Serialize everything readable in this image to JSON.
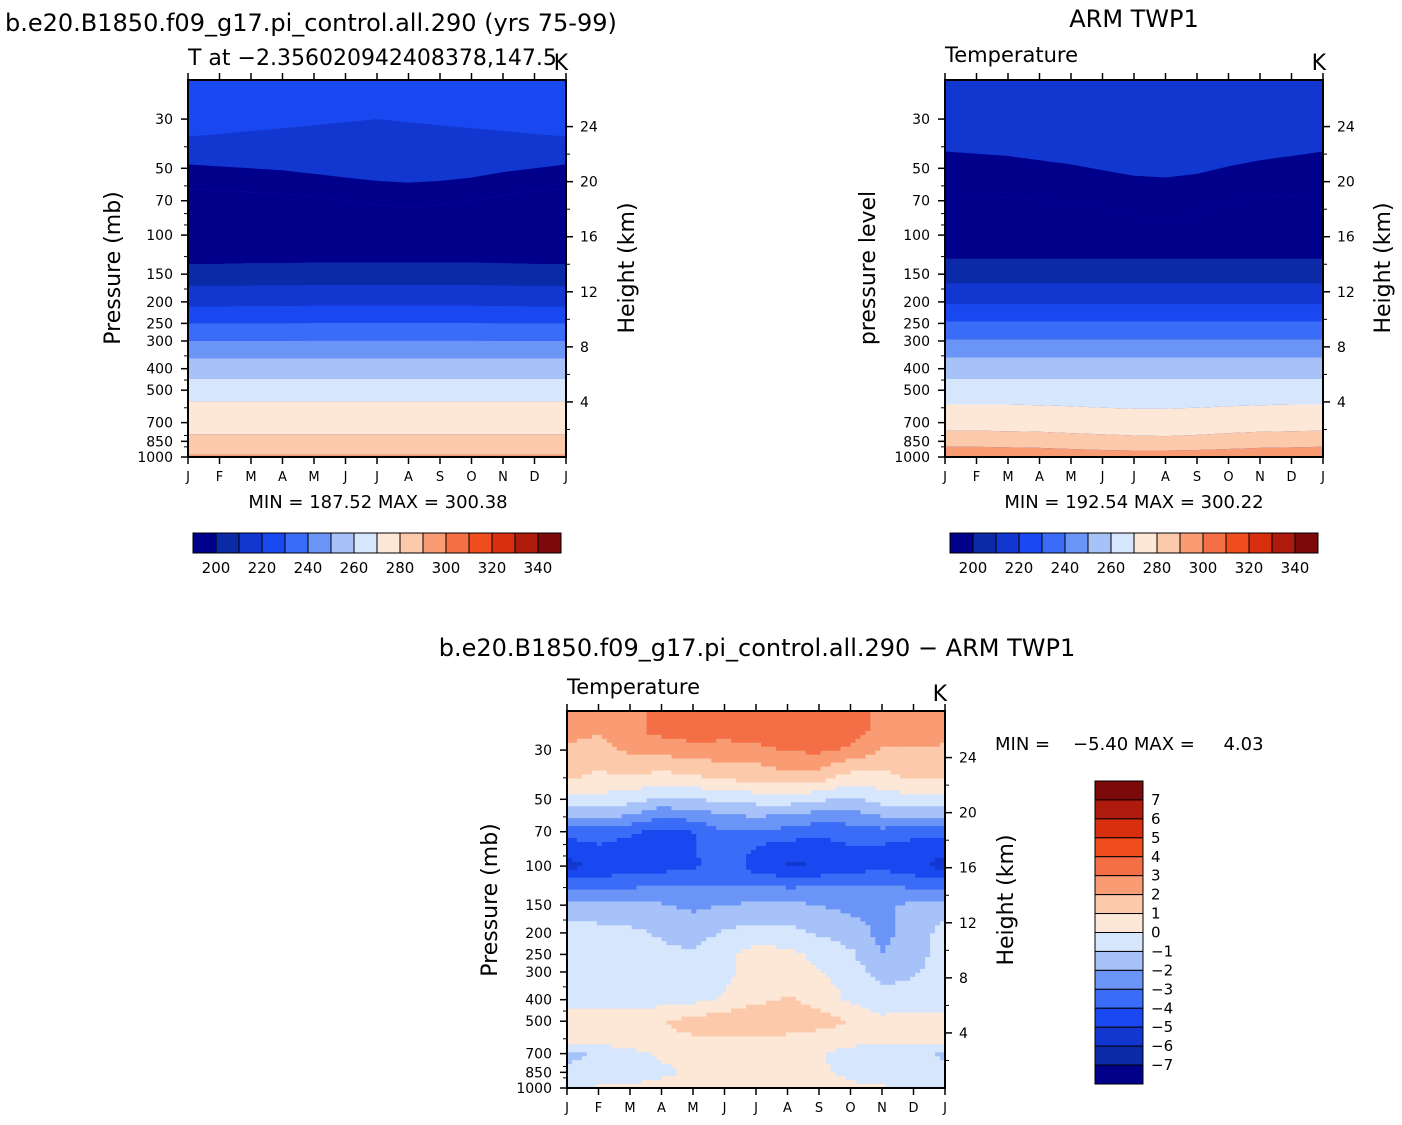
{
  "chart_data": [
    {
      "type": "heatmap",
      "title": "b.e20.B1850.f09_g17.pi_control.all.290 (yrs 75-99)",
      "subtitle": "T at -2.356020942408378,147.5",
      "units": "K",
      "ylabel": "Pressure (mb)",
      "ylabel_right": "Height (km)",
      "x_ticks": [
        "J",
        "F",
        "M",
        "A",
        "M",
        "J",
        "J",
        "A",
        "S",
        "O",
        "N",
        "D",
        "J"
      ],
      "y_ticks": [
        "30",
        "50",
        "70",
        "100",
        "150",
        "200",
        "250",
        "300",
        "400",
        "500",
        "700",
        "850",
        "1000"
      ],
      "y_ticks_right": [
        "24",
        "20",
        "16",
        "12",
        "8",
        "4"
      ],
      "ylim_mb": [
        1000,
        20
      ],
      "stats": "MIN = 187.52 MAX = 300.38",
      "min": 187.52,
      "max": 300.38,
      "colorbar_ticks": [
        "200",
        "220",
        "240",
        "260",
        "280",
        "300",
        "320",
        "340"
      ],
      "colorbar_levels": [
        190,
        200,
        210,
        220,
        230,
        240,
        250,
        260,
        270,
        280,
        290,
        300,
        310,
        320,
        330,
        340,
        350
      ],
      "level_boundaries_mb": [
        {
          "value": 230,
          "p_mb": [
            36,
            35,
            34,
            33,
            32,
            31,
            30,
            31,
            32,
            33,
            34,
            35,
            36
          ]
        },
        {
          "value": 220,
          "p_mb": [
            48,
            49,
            50,
            51,
            53,
            55,
            57,
            58,
            57,
            55,
            52,
            50,
            48
          ]
        },
        {
          "value": 200,
          "p_mb": [
            62,
            63,
            64,
            65,
            67,
            70,
            73,
            75,
            73,
            70,
            66,
            63,
            62
          ]
        },
        {
          "value": 190,
          "p_mb": [
            135,
            135,
            134,
            134,
            133,
            133,
            133,
            133,
            133,
            133,
            134,
            135,
            135
          ]
        },
        {
          "value": 210,
          "p_mb": [
            170,
            170,
            169,
            169,
            168,
            168,
            168,
            168,
            168,
            168,
            169,
            170,
            170
          ]
        },
        {
          "value": 220,
          "p_mb": [
            210,
            210,
            209,
            209,
            208,
            208,
            208,
            208,
            208,
            208,
            209,
            210,
            210
          ]
        },
        {
          "value": 230,
          "p_mb": [
            250,
            250,
            250,
            250,
            249,
            249,
            249,
            249,
            249,
            249,
            250,
            250,
            250
          ]
        },
        {
          "value": 240,
          "p_mb": [
            300,
            300,
            300,
            300,
            299,
            299,
            299,
            299,
            299,
            299,
            300,
            300,
            300
          ]
        },
        {
          "value": 250,
          "p_mb": [
            360,
            360,
            360,
            360,
            360,
            360,
            360,
            360,
            360,
            360,
            360,
            360,
            360
          ]
        },
        {
          "value": 260,
          "p_mb": [
            445,
            445,
            445,
            445,
            445,
            445,
            445,
            445,
            445,
            445,
            445,
            445,
            445
          ]
        },
        {
          "value": 270,
          "p_mb": [
            560,
            560,
            560,
            560,
            560,
            560,
            560,
            560,
            560,
            560,
            560,
            560,
            560
          ]
        },
        {
          "value": 280,
          "p_mb": [
            790,
            790,
            790,
            790,
            790,
            790,
            790,
            790,
            790,
            790,
            790,
            790,
            790
          ]
        },
        {
          "value": 290,
          "p_mb": [
            975,
            975,
            975,
            975,
            975,
            975,
            975,
            975,
            975,
            975,
            975,
            975,
            975
          ]
        }
      ]
    },
    {
      "type": "heatmap",
      "title": "ARM TWP1",
      "subtitle": "Temperature",
      "units": "K",
      "ylabel": "pressure level",
      "ylabel_right": "Height (km)",
      "x_ticks": [
        "J",
        "F",
        "M",
        "A",
        "M",
        "J",
        "J",
        "A",
        "S",
        "O",
        "N",
        "D",
        "J"
      ],
      "y_ticks": [
        "30",
        "50",
        "70",
        "100",
        "150",
        "200",
        "250",
        "300",
        "400",
        "500",
        "700",
        "850",
        "1000"
      ],
      "y_ticks_right": [
        "24",
        "20",
        "16",
        "12",
        "8",
        "4"
      ],
      "ylim_mb": [
        1000,
        20
      ],
      "stats": "MIN = 192.54 MAX = 300.22",
      "min": 192.54,
      "max": 300.22,
      "colorbar_ticks": [
        "200",
        "220",
        "240",
        "260",
        "280",
        "300",
        "320",
        "340"
      ],
      "colorbar_levels": [
        190,
        200,
        210,
        220,
        230,
        240,
        250,
        260,
        270,
        280,
        290,
        300,
        310,
        320,
        330,
        340,
        350
      ],
      "level_boundaries_mb": [
        {
          "value": 220,
          "p_mb": [
            42,
            43,
            44,
            46,
            48,
            51,
            54,
            55,
            53,
            49,
            46,
            44,
            42
          ]
        },
        {
          "value": 200,
          "p_mb": [
            66,
            67,
            68,
            69,
            71,
            75,
            82,
            86,
            80,
            70,
            67,
            66,
            66
          ]
        },
        {
          "value": 190,
          "p_mb": [
            128,
            128,
            128,
            128,
            128,
            128,
            128,
            128,
            128,
            128,
            128,
            128,
            128
          ]
        },
        {
          "value": 210,
          "p_mb": [
            165,
            165,
            165,
            165,
            165,
            165,
            165,
            165,
            165,
            165,
            165,
            165,
            165
          ]
        },
        {
          "value": 220,
          "p_mb": [
            205,
            205,
            205,
            205,
            205,
            205,
            205,
            205,
            205,
            205,
            205,
            205,
            205
          ]
        },
        {
          "value": 230,
          "p_mb": [
            245,
            245,
            245,
            245,
            245,
            245,
            245,
            245,
            245,
            245,
            245,
            245,
            245
          ]
        },
        {
          "value": 240,
          "p_mb": [
            295,
            295,
            295,
            295,
            295,
            295,
            295,
            295,
            295,
            295,
            295,
            295,
            295
          ]
        },
        {
          "value": 250,
          "p_mb": [
            355,
            355,
            355,
            355,
            355,
            355,
            355,
            355,
            355,
            355,
            355,
            355,
            355
          ]
        },
        {
          "value": 260,
          "p_mb": [
            445,
            445,
            445,
            445,
            445,
            445,
            445,
            445,
            445,
            445,
            445,
            445,
            445
          ]
        },
        {
          "value": 270,
          "p_mb": [
            580,
            580,
            580,
            585,
            590,
            600,
            605,
            605,
            600,
            590,
            585,
            580,
            580
          ]
        },
        {
          "value": 280,
          "p_mb": [
            760,
            760,
            765,
            770,
            780,
            790,
            800,
            805,
            795,
            780,
            770,
            765,
            760
          ]
        },
        {
          "value": 290,
          "p_mb": [
            900,
            900,
            905,
            910,
            920,
            930,
            935,
            935,
            930,
            920,
            910,
            905,
            900
          ]
        }
      ]
    },
    {
      "type": "heatmap",
      "title": "b.e20.B1850.f09_g17.pi_control.all.290 - ARM TWP1",
      "subtitle": "Temperature",
      "units": "K",
      "ylabel": "Pressure (mb)",
      "ylabel_right": "Height (km)",
      "x_ticks": [
        "J",
        "F",
        "M",
        "A",
        "M",
        "J",
        "J",
        "A",
        "S",
        "O",
        "N",
        "D",
        "J"
      ],
      "y_ticks": [
        "30",
        "50",
        "70",
        "100",
        "150",
        "200",
        "250",
        "300",
        "400",
        "500",
        "700",
        "850",
        "1000"
      ],
      "y_ticks_right": [
        "24",
        "20",
        "16",
        "12",
        "8",
        "4"
      ],
      "ylim_mb": [
        1000,
        20
      ],
      "stats": "MIN =    -5.40 MAX =     4.03",
      "min": -5.4,
      "max": 4.03,
      "colorbar_labels": [
        "7",
        "6",
        "5",
        "4",
        "3",
        "2",
        "1",
        "0",
        "-1",
        "-2",
        "-3",
        "-4",
        "-5",
        "-6",
        "-7"
      ],
      "colorbar_levels": [
        -8,
        -7,
        -6,
        -5,
        -4,
        -3,
        -2,
        -1,
        0,
        1,
        2,
        3,
        4,
        5,
        6,
        7,
        8
      ],
      "x_months": [
        0,
        1,
        2,
        3,
        4,
        5,
        6,
        7,
        8,
        9,
        10,
        11,
        12
      ],
      "p_levels_mb": [
        25,
        30,
        40,
        50,
        60,
        70,
        85,
        100,
        120,
        150,
        200,
        250,
        300,
        400,
        500,
        600,
        700,
        850,
        1000
      ],
      "values": [
        [
          2.4,
          2.0,
          2.8,
          3.2,
          3.5,
          3.3,
          3.6,
          3.7,
          3.9,
          3.5,
          2.6,
          2.9,
          2.4
        ],
        [
          1.8,
          1.6,
          2.2,
          2.3,
          2.6,
          2.6,
          2.7,
          3.1,
          3.2,
          2.8,
          1.9,
          1.7,
          1.8
        ],
        [
          1.1,
          0.8,
          0.9,
          0.6,
          0.8,
          1.2,
          1.3,
          1.6,
          1.4,
          0.5,
          0.7,
          1.1,
          1.1
        ],
        [
          -0.4,
          -0.3,
          -0.6,
          -1.2,
          -1.0,
          -0.8,
          -0.6,
          -0.5,
          -0.8,
          -1.2,
          -0.5,
          -0.4,
          -0.4
        ],
        [
          -2.0,
          -1.8,
          -2.2,
          -3.0,
          -2.6,
          -2.2,
          -2.0,
          -2.2,
          -2.6,
          -2.5,
          -2.0,
          -2.0,
          -2.0
        ],
        [
          -3.6,
          -3.4,
          -3.8,
          -4.3,
          -4.0,
          -3.0,
          -3.2,
          -3.3,
          -3.6,
          -3.5,
          -3.3,
          -3.6,
          -3.6
        ],
        [
          -4.8,
          -4.3,
          -4.6,
          -4.6,
          -4.2,
          -3.0,
          -4.2,
          -4.8,
          -4.7,
          -4.2,
          -4.3,
          -4.6,
          -4.8
        ],
        [
          -5.3,
          -4.9,
          -4.6,
          -4.4,
          -4.2,
          -3.2,
          -4.6,
          -5.1,
          -5.0,
          -4.6,
          -4.2,
          -4.8,
          -5.3
        ],
        [
          -3.4,
          -3.4,
          -3.3,
          -3.2,
          -3.1,
          -3.0,
          -3.2,
          -3.3,
          -3.2,
          -3.1,
          -3.1,
          -3.3,
          -3.4
        ],
        [
          -1.5,
          -1.6,
          -1.7,
          -1.9,
          -2.2,
          -2.0,
          -1.8,
          -1.7,
          -2.0,
          -2.3,
          -2.1,
          -1.8,
          -1.5
        ],
        [
          -0.6,
          -0.7,
          -0.8,
          -1.1,
          -1.4,
          -0.9,
          -0.6,
          -0.7,
          -1.1,
          -1.5,
          -2.3,
          -1.6,
          -0.6
        ],
        [
          -0.5,
          -0.6,
          -0.7,
          -0.8,
          -0.9,
          -0.2,
          0.4,
          0.3,
          -0.3,
          -0.8,
          -2.0,
          -1.5,
          -0.5
        ],
        [
          -0.5,
          -0.6,
          -0.6,
          -0.7,
          -0.6,
          -0.2,
          0.3,
          0.4,
          0.1,
          -0.6,
          -1.3,
          -1.1,
          -0.5
        ],
        [
          -0.3,
          -0.4,
          -0.4,
          -0.4,
          -0.3,
          0.1,
          0.8,
          1.1,
          0.7,
          -0.2,
          -0.7,
          -0.6,
          -0.3
        ],
        [
          0.3,
          0.4,
          0.6,
          0.9,
          1.4,
          1.7,
          1.8,
          1.6,
          1.4,
          1.0,
          0.3,
          0.4,
          0.3
        ],
        [
          0.5,
          0.6,
          0.7,
          0.8,
          0.9,
          0.9,
          0.9,
          0.8,
          0.6,
          0.4,
          0.2,
          0.4,
          0.5
        ],
        [
          -1.2,
          -0.9,
          -0.3,
          0.2,
          0.4,
          0.6,
          0.5,
          0.3,
          0.1,
          -0.3,
          -0.5,
          -0.6,
          -1.2
        ],
        [
          -0.8,
          -0.7,
          -0.5,
          -0.2,
          0.1,
          0.2,
          0.2,
          0.2,
          0.1,
          -0.2,
          -0.6,
          -0.5,
          -0.8
        ],
        [
          -0.2,
          0.1,
          0.2,
          0.3,
          0.4,
          0.6,
          0.7,
          0.6,
          0.4,
          0.2,
          0.1,
          -0.1,
          -0.2
        ]
      ]
    }
  ]
}
